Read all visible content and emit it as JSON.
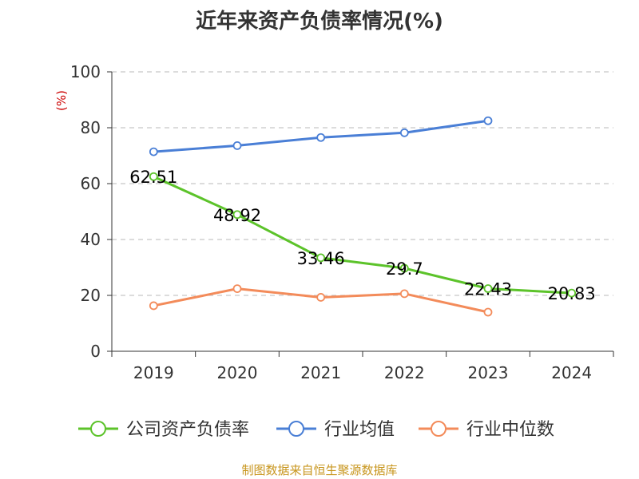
{
  "chart_data": {
    "type": "line",
    "title": "近年来资产负债率情况(%)",
    "ylabel": "(%)",
    "ylim": [
      0,
      100
    ],
    "yticks": [
      0,
      20,
      40,
      60,
      80,
      100
    ],
    "categories": [
      "2019",
      "2020",
      "2021",
      "2022",
      "2023",
      "2024"
    ],
    "grid": "horizontal-dashed",
    "legend_position": "bottom",
    "series": [
      {
        "name": "公司资产负债率",
        "color": "#5cc32a",
        "values": [
          62.51,
          48.92,
          33.46,
          29.7,
          22.43,
          20.83
        ],
        "labels": [
          "62.51",
          "48.92",
          "33.46",
          "29.7",
          "22.43",
          "20.83"
        ]
      },
      {
        "name": "行业均值",
        "color": "#4a7fd6",
        "values": [
          71.4,
          73.6,
          76.5,
          78.2,
          82.5,
          null
        ]
      },
      {
        "name": "行业中位数",
        "color": "#f38b5a",
        "values": [
          16.3,
          22.4,
          19.3,
          20.6,
          14.0,
          null
        ]
      }
    ]
  },
  "source_note": "制图数据来自恒生聚源数据库"
}
